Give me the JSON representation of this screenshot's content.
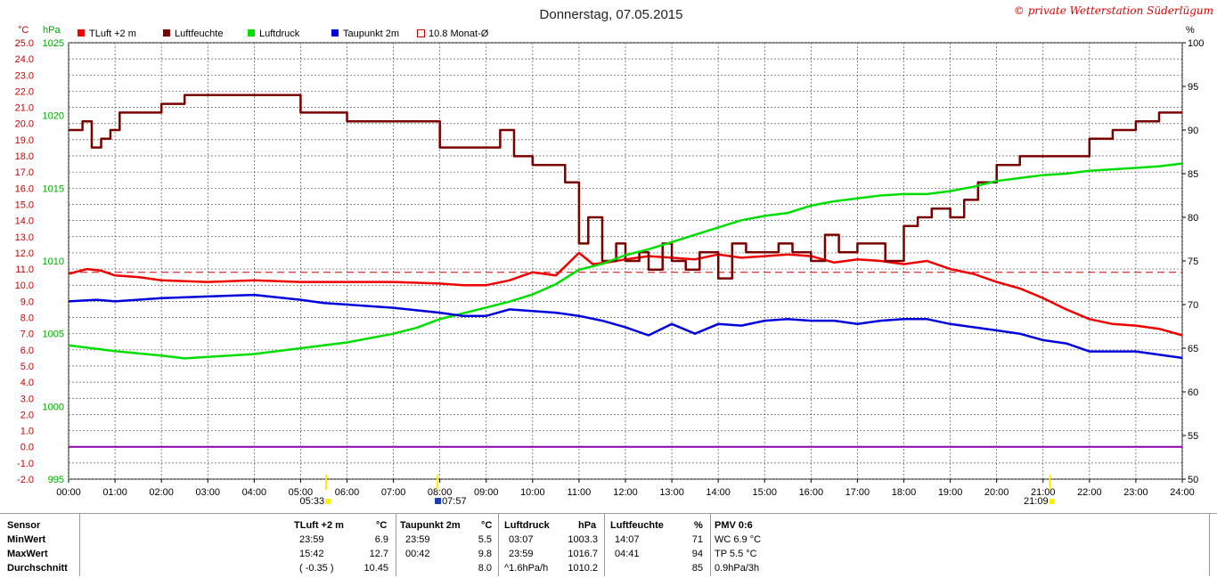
{
  "chart_data": {
    "type": "line",
    "title": "Donnerstag, 07.05.2015",
    "credit": "© private Wetterstation Süderlügum",
    "left_axis_unit_temp": "°C",
    "left_axis_unit_pressure": "hPa",
    "right_axis_unit": "%",
    "temp_ylim": [
      -2.0,
      25.0
    ],
    "temp_ticks": [
      "25.0",
      "24.0",
      "23.0",
      "22.0",
      "21.0",
      "20.0",
      "19.0",
      "18.0",
      "17.0",
      "16.0",
      "15.0",
      "14.0",
      "13.0",
      "12.0",
      "11.0",
      "10.0",
      "9.0",
      "8.0",
      "7.0",
      "6.0",
      "5.0",
      "4.0",
      "3.0",
      "2.0",
      "1.0",
      "0.0",
      "-1.0",
      "-2.0"
    ],
    "pressure_ylim": [
      995,
      1025
    ],
    "pressure_ticks": [
      "1025",
      "1020",
      "1015",
      "1010",
      "1005",
      "1000",
      "995"
    ],
    "humidity_ylim": [
      50,
      100
    ],
    "humidity_ticks": [
      "100",
      "95",
      "90",
      "85",
      "80",
      "75",
      "70",
      "65",
      "60",
      "55",
      "50"
    ],
    "x_ticks": [
      "00:00",
      "01:00",
      "02:00",
      "03:00",
      "04:00",
      "05:00",
      "06:00",
      "07:00",
      "08:00",
      "09:00",
      "10:00",
      "11:00",
      "12:00",
      "13:00",
      "14:00",
      "15:00",
      "16:00",
      "17:00",
      "18:00",
      "19:00",
      "20:00",
      "21:00",
      "22:00",
      "23:00",
      "24:00"
    ],
    "sunrise": "05:33",
    "sunset": "21:09",
    "sunrise_hour": 5.55,
    "sunset_hour": 21.15,
    "marker_label": "07:57",
    "marker_hour": 7.95,
    "legend": [
      "TLuft +2 m",
      "Luftfeuchte",
      "Luftdruck",
      "Taupunkt 2m",
      "10.8 Monat-Ø"
    ],
    "colors": {
      "temp": "#ee0000",
      "humidity": "#7a0000",
      "pressure": "#00dd00",
      "dewpoint": "#0000dd",
      "zero": "#8800aa",
      "monthly": "#cc0000",
      "axis_temp": "#cc0000",
      "axis_pressure": "#00aa00"
    },
    "monthly_mean": 10.8,
    "zero_line": 0.0,
    "series": [
      {
        "name": "TLuft +2 m",
        "axis": "temp",
        "x": [
          0,
          0.4,
          0.7,
          1.0,
          1.5,
          2.0,
          3.0,
          4.0,
          5.0,
          6.0,
          7.0,
          8.0,
          8.5,
          9.0,
          9.5,
          10.0,
          10.5,
          11.0,
          11.3,
          11.6,
          12.0,
          12.5,
          13.0,
          13.5,
          14.0,
          14.5,
          15.0,
          15.5,
          16.0,
          16.5,
          17.0,
          17.5,
          18.0,
          18.5,
          19.0,
          19.5,
          20.0,
          20.5,
          21.0,
          21.5,
          22.0,
          22.5,
          23.0,
          23.5,
          24.0
        ],
        "y": [
          10.7,
          11.0,
          10.9,
          10.6,
          10.5,
          10.3,
          10.2,
          10.3,
          10.2,
          10.2,
          10.2,
          10.1,
          10.0,
          10.0,
          10.3,
          10.8,
          10.6,
          12.0,
          11.3,
          11.4,
          11.6,
          11.8,
          11.7,
          11.6,
          11.9,
          11.7,
          11.8,
          11.9,
          11.8,
          11.4,
          11.6,
          11.5,
          11.3,
          11.5,
          11.0,
          10.7,
          10.2,
          9.8,
          9.2,
          8.5,
          7.9,
          7.6,
          7.5,
          7.3,
          6.9
        ]
      },
      {
        "name": "Luftfeuchte",
        "axis": "humidity",
        "x": [
          0,
          0.3,
          0.5,
          0.7,
          0.9,
          1.1,
          1.5,
          2.0,
          2.5,
          3.0,
          4.0,
          4.6,
          5.0,
          5.5,
          6.0,
          7.0,
          7.5,
          8.0,
          8.5,
          9.0,
          9.3,
          9.6,
          10.0,
          10.3,
          10.7,
          11.0,
          11.2,
          11.5,
          11.8,
          12.0,
          12.3,
          12.5,
          12.8,
          13.0,
          13.3,
          13.6,
          14.0,
          14.3,
          14.6,
          15.0,
          15.3,
          15.6,
          16.0,
          16.3,
          16.6,
          17.0,
          17.3,
          17.6,
          18.0,
          18.3,
          18.6,
          19.0,
          19.3,
          19.6,
          20.0,
          20.5,
          21.0,
          21.5,
          22.0,
          22.5,
          23.0,
          23.5,
          24.0
        ],
        "y": [
          90,
          91,
          88,
          89,
          90,
          92,
          92,
          93,
          94,
          94,
          94,
          94,
          92,
          92,
          91,
          91,
          91,
          88,
          88,
          88,
          90,
          87,
          86,
          86,
          84,
          77,
          80,
          75,
          77,
          75,
          76,
          74,
          77,
          75,
          74,
          76,
          73,
          77,
          76,
          76,
          77,
          76,
          75,
          78,
          76,
          77,
          77,
          75,
          79,
          80,
          81,
          80,
          82,
          84,
          86,
          87,
          87,
          87,
          89,
          90,
          91,
          92,
          92
        ]
      },
      {
        "name": "Luftdruck",
        "axis": "pressure",
        "x": [
          0,
          1,
          2,
          2.5,
          3,
          4,
          5,
          6,
          7,
          7.5,
          8,
          8.5,
          9,
          9.5,
          10,
          10.5,
          11,
          11.5,
          12,
          12.5,
          13,
          13.5,
          14,
          14.5,
          15,
          15.5,
          16,
          16.5,
          17,
          17.5,
          18,
          18.5,
          19,
          19.5,
          20,
          20.5,
          21,
          21.5,
          22,
          22.5,
          23,
          23.5,
          24
        ],
        "y": [
          1004.2,
          1003.8,
          1003.5,
          1003.3,
          1003.4,
          1003.6,
          1004.0,
          1004.4,
          1005.0,
          1005.4,
          1006.0,
          1006.4,
          1006.8,
          1007.2,
          1007.7,
          1008.4,
          1009.4,
          1009.8,
          1010.4,
          1010.8,
          1011.3,
          1011.8,
          1012.3,
          1012.8,
          1013.1,
          1013.3,
          1013.8,
          1014.1,
          1014.3,
          1014.5,
          1014.6,
          1014.6,
          1014.8,
          1015.1,
          1015.5,
          1015.7,
          1015.9,
          1016.0,
          1016.2,
          1016.3,
          1016.4,
          1016.5,
          1016.7
        ]
      },
      {
        "name": "Taupunkt 2m",
        "axis": "temp",
        "x": [
          0,
          0.6,
          1.0,
          2.0,
          3.0,
          4.0,
          5.0,
          5.5,
          6.0,
          7.0,
          8.0,
          8.5,
          9.0,
          9.5,
          10.0,
          10.5,
          11.0,
          11.5,
          12.0,
          12.5,
          13.0,
          13.5,
          14.0,
          14.5,
          15.0,
          15.5,
          16.0,
          16.5,
          17.0,
          17.5,
          18.0,
          18.5,
          19.0,
          19.5,
          20.0,
          20.5,
          21.0,
          21.5,
          22.0,
          22.5,
          23.0,
          23.5,
          24.0
        ],
        "y": [
          9.0,
          9.1,
          9.0,
          9.2,
          9.3,
          9.4,
          9.1,
          8.9,
          8.8,
          8.6,
          8.3,
          8.1,
          8.1,
          8.5,
          8.4,
          8.3,
          8.1,
          7.8,
          7.4,
          6.9,
          7.6,
          7.0,
          7.6,
          7.5,
          7.8,
          7.9,
          7.8,
          7.8,
          7.6,
          7.8,
          7.9,
          7.9,
          7.6,
          7.4,
          7.2,
          7.0,
          6.6,
          6.4,
          5.9,
          5.9,
          5.9,
          5.7,
          5.5
        ]
      }
    ]
  },
  "table": {
    "headers": {
      "sensor": "Sensor",
      "temp": "TLuft +2 m",
      "temp_unit": "°C",
      "dew": "Taupunkt 2m",
      "dew_unit": "°C",
      "press": "Luftdruck",
      "press_unit": "hPa",
      "hum": "Luftfeuchte",
      "hum_unit": "%",
      "pmv": "PMV 0:6"
    },
    "rows": [
      {
        "label": "MinWert",
        "temp_time": "23:59",
        "temp_val": "6.9",
        "dew_time": "23:59",
        "dew_val": "5.5",
        "press_time": "03:07",
        "press_val": "1003.3",
        "hum_time": "14:07",
        "hum_val": "71",
        "pmv": "WC 6.9 °C"
      },
      {
        "label": "MaxWert",
        "temp_time": "15:42",
        "temp_val": "12.7",
        "dew_time": "00:42",
        "dew_val": "9.8",
        "press_time": "23:59",
        "press_val": "1016.7",
        "hum_time": "04:41",
        "hum_val": "94",
        "pmv": "TP 5.5 °C"
      },
      {
        "label": "Durchschnitt",
        "temp_time": "( -0.35 )",
        "temp_val": "10.45",
        "dew_time": "",
        "dew_val": "8.0",
        "press_time": "^1.6hPa/h",
        "press_val": "1010.2",
        "hum_time": "",
        "hum_val": "85",
        "pmv": "0.9hPa/3h"
      }
    ]
  }
}
